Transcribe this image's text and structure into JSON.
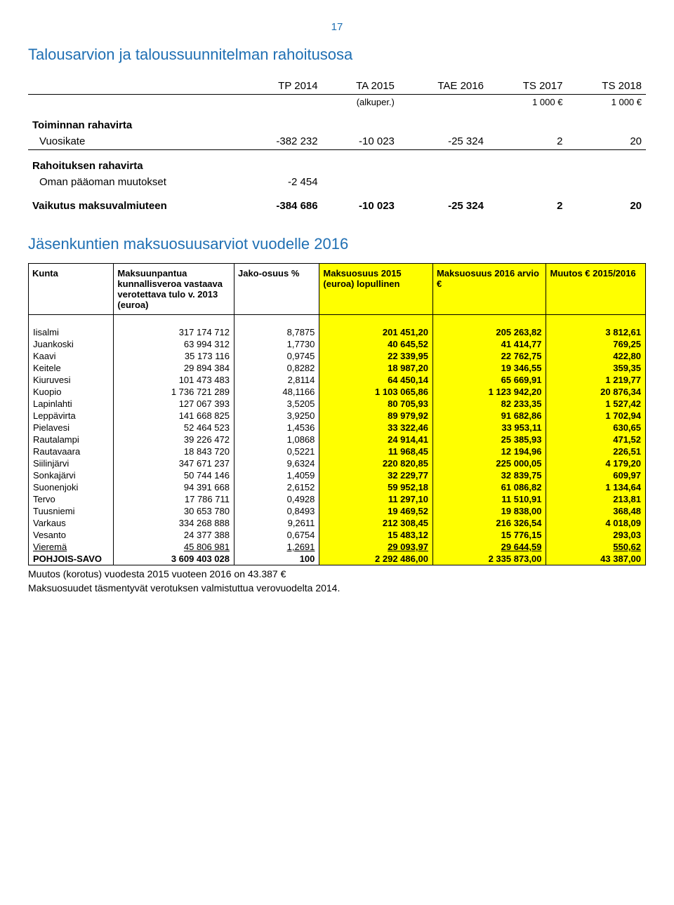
{
  "page_number": "17",
  "title": "Talousarvion ja taloussuunnitelman rahoitusosa",
  "cashflow": {
    "headers": [
      "TP 2014",
      "TA 2015",
      "TAE 2016",
      "TS 2017",
      "TS 2018"
    ],
    "subheaders": [
      "",
      "(alkuper.)",
      "",
      "1 000 €",
      "1 000 €"
    ],
    "sections": [
      {
        "label": "Toiminnan rahavirta",
        "rows": [
          {
            "label": "Vuosikate",
            "vals": [
              "-382 232",
              "-10 023",
              "-25 324",
              "2",
              "20"
            ]
          }
        ]
      },
      {
        "label": "Rahoituksen rahavirta",
        "rows": [
          {
            "label": "Oman pääoman muutokset",
            "vals": [
              "-2 454",
              "",
              "",
              "",
              ""
            ]
          }
        ]
      },
      {
        "label": "Vaikutus maksuvalmiuteen",
        "rows": [
          {
            "label": "",
            "vals": [
              "-384 686",
              "-10 023",
              "-25 324",
              "2",
              "20"
            ]
          }
        ]
      }
    ]
  },
  "subtitle": "Jäsenkuntien maksuosuusarviot vuodelle 2016",
  "table": {
    "columns": [
      "Kunta",
      "Maksuunpantua kunnallisveroa vastaava verotettava tulo v. 2013 (euroa)",
      "Jako-osuus %",
      "Maksuosuus 2015 (euroa) lopullinen",
      "Maksuosuus 2016 arvio €",
      "Muutos € 2015/2016"
    ],
    "col_widths": [
      "110px",
      "160px",
      "110px",
      "150px",
      "150px",
      "130px"
    ],
    "highlight_color": "#ffff00",
    "rows": [
      [
        "Iisalmi",
        "317 174 712",
        "8,7875",
        "201 451,20",
        "205 263,82",
        "3 812,61"
      ],
      [
        "Juankoski",
        "63 994 312",
        "1,7730",
        "40 645,52",
        "41 414,77",
        "769,25"
      ],
      [
        "Kaavi",
        "35 173 116",
        "0,9745",
        "22 339,95",
        "22 762,75",
        "422,80"
      ],
      [
        "Keitele",
        "29 894 384",
        "0,8282",
        "18 987,20",
        "19 346,55",
        "359,35"
      ],
      [
        "Kiuruvesi",
        "101 473 483",
        "2,8114",
        "64 450,14",
        "65 669,91",
        "1 219,77"
      ],
      [
        "Kuopio",
        "1 736 721 289",
        "48,1166",
        "1 103 065,86",
        "1 123 942,20",
        "20 876,34"
      ],
      [
        "Lapinlahti",
        "127 067 393",
        "3,5205",
        "80 705,93",
        "82 233,35",
        "1 527,42"
      ],
      [
        "Leppävirta",
        "141 668 825",
        "3,9250",
        "89 979,92",
        "91 682,86",
        "1 702,94"
      ],
      [
        "Pielavesi",
        "52 464 523",
        "1,4536",
        "33 322,46",
        "33 953,11",
        "630,65"
      ],
      [
        "Rautalampi",
        "39 226 472",
        "1,0868",
        "24 914,41",
        "25 385,93",
        "471,52"
      ],
      [
        "Rautavaara",
        "18 843 720",
        "0,5221",
        "11 968,45",
        "12 194,96",
        "226,51"
      ],
      [
        "Siilinjärvi",
        "347 671 237",
        "9,6324",
        "220 820,85",
        "225 000,05",
        "4 179,20"
      ],
      [
        "Sonkajärvi",
        "50 744 146",
        "1,4059",
        "32 229,77",
        "32 839,75",
        "609,97"
      ],
      [
        "Suonenjoki",
        "94 391 668",
        "2,6152",
        "59 952,18",
        "61 086,82",
        "1 134,64"
      ],
      [
        "Tervo",
        "17 786 711",
        "0,4928",
        "11 297,10",
        "11 510,91",
        "213,81"
      ],
      [
        "Tuusniemi",
        "30 653 780",
        "0,8493",
        "19 469,52",
        "19 838,00",
        "368,48"
      ],
      [
        "Varkaus",
        "334 268 888",
        "9,2611",
        "212 308,45",
        "216 326,54",
        "4 018,09"
      ],
      [
        "Vesanto",
        "24 377 388",
        "0,6754",
        "15 483,12",
        "15 776,15",
        "293,03"
      ]
    ],
    "underline_row": [
      "Vieremä",
      "45 806 981",
      "1,2691",
      "29 093,97",
      "29 644,59",
      "550,62"
    ],
    "total_row": [
      "POHJOIS-SAVO",
      "3 609 403 028",
      "100",
      "2 292 486,00",
      "2 335 873,00",
      "43 387,00"
    ]
  },
  "footnote1": "Muutos (korotus) vuodesta 2015 vuoteen 2016 on 43.387 €",
  "footnote2": "Maksuosuudet täsmentyvät verotuksen valmistuttua verovuodelta 2014."
}
